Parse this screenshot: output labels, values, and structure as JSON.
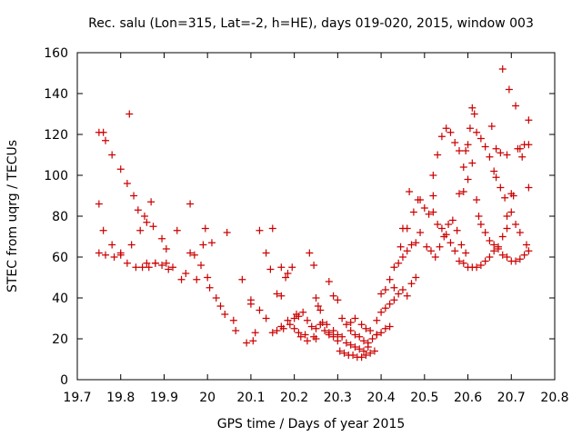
{
  "chart_data": {
    "type": "scatter",
    "title": "Rec. salu (Lon=315, Lat=-2, h=HE), days 019-020, 2015, window 003",
    "xlabel": "GPS time / Days of year 2015",
    "ylabel": "STEC from uqrg / TECUs",
    "xlim": [
      19.7,
      20.8
    ],
    "ylim": [
      0,
      160
    ],
    "xticks": [
      "19.7",
      "19.8",
      "19.9",
      "20",
      "20.1",
      "20.2",
      "20.3",
      "20.4",
      "20.5",
      "20.6",
      "20.7",
      "20.8"
    ],
    "yticks": [
      "0",
      "20",
      "40",
      "60",
      "80",
      "100",
      "120",
      "140",
      "160"
    ],
    "grid": false,
    "marker": "+",
    "color": "#cc0000",
    "points": [
      [
        19.75,
        121
      ],
      [
        19.76,
        121
      ],
      [
        19.765,
        117
      ],
      [
        19.78,
        110
      ],
      [
        19.8,
        103
      ],
      [
        19.815,
        96
      ],
      [
        19.83,
        90
      ],
      [
        19.84,
        83
      ],
      [
        19.855,
        80
      ],
      [
        19.86,
        77
      ],
      [
        19.875,
        75
      ],
      [
        19.87,
        87
      ],
      [
        19.895,
        69
      ],
      [
        19.905,
        64
      ],
      [
        19.93,
        73
      ],
      [
        19.96,
        86
      ],
      [
        19.995,
        74
      ],
      [
        20.01,
        67
      ],
      [
        19.75,
        86
      ],
      [
        19.76,
        73
      ],
      [
        19.78,
        66
      ],
      [
        19.8,
        62
      ],
      [
        19.825,
        66
      ],
      [
        19.845,
        73
      ],
      [
        19.86,
        57
      ],
      [
        19.88,
        57
      ],
      [
        19.905,
        57
      ],
      [
        19.92,
        55
      ],
      [
        19.95,
        52
      ],
      [
        19.975,
        49
      ],
      [
        20.005,
        45
      ],
      [
        20.03,
        36
      ],
      [
        20.06,
        29
      ],
      [
        19.75,
        62
      ],
      [
        19.765,
        61
      ],
      [
        19.785,
        60
      ],
      [
        19.8,
        61
      ],
      [
        19.815,
        57
      ],
      [
        19.835,
        55
      ],
      [
        19.85,
        55
      ],
      [
        19.865,
        55
      ],
      [
        19.88,
        57
      ],
      [
        19.895,
        56
      ],
      [
        19.91,
        54
      ],
      [
        19.94,
        49
      ],
      [
        19.96,
        62
      ],
      [
        19.985,
        56
      ],
      [
        20.0,
        50
      ],
      [
        19.82,
        130
      ],
      [
        19.97,
        61
      ],
      [
        19.99,
        66
      ],
      [
        20.02,
        40
      ],
      [
        20.04,
        32
      ],
      [
        20.065,
        24
      ],
      [
        20.09,
        18
      ],
      [
        20.105,
        19
      ],
      [
        20.11,
        23
      ],
      [
        20.045,
        72
      ],
      [
        20.08,
        49
      ],
      [
        20.1,
        37
      ],
      [
        20.12,
        73
      ],
      [
        20.135,
        62
      ],
      [
        20.145,
        54
      ],
      [
        20.16,
        42
      ],
      [
        20.17,
        41
      ],
      [
        20.175,
        25
      ],
      [
        20.1,
        39
      ],
      [
        20.12,
        34
      ],
      [
        20.135,
        30
      ],
      [
        20.15,
        23
      ],
      [
        20.16,
        24
      ],
      [
        20.17,
        26
      ],
      [
        20.185,
        29
      ],
      [
        20.19,
        27
      ],
      [
        20.2,
        25
      ],
      [
        20.21,
        23
      ],
      [
        20.225,
        22
      ],
      [
        20.15,
        74
      ],
      [
        20.17,
        55
      ],
      [
        20.18,
        50
      ],
      [
        20.185,
        52
      ],
      [
        20.195,
        55
      ],
      [
        20.205,
        32
      ],
      [
        20.215,
        21
      ],
      [
        20.23,
        19
      ],
      [
        20.245,
        21
      ],
      [
        20.25,
        20
      ],
      [
        20.235,
        62
      ],
      [
        20.245,
        56
      ],
      [
        20.25,
        40
      ],
      [
        20.255,
        36
      ],
      [
        20.26,
        34
      ],
      [
        20.265,
        28
      ],
      [
        20.275,
        27
      ],
      [
        20.28,
        23
      ],
      [
        20.29,
        24
      ],
      [
        20.3,
        22
      ],
      [
        20.2,
        30
      ],
      [
        20.21,
        31
      ],
      [
        20.22,
        33
      ],
      [
        20.23,
        29
      ],
      [
        20.24,
        26
      ],
      [
        20.25,
        25
      ],
      [
        20.26,
        27
      ],
      [
        20.27,
        24
      ],
      [
        20.28,
        22
      ],
      [
        20.29,
        21
      ],
      [
        20.3,
        19
      ],
      [
        20.31,
        21
      ],
      [
        20.32,
        18
      ],
      [
        20.33,
        17
      ],
      [
        20.34,
        16
      ],
      [
        20.35,
        15
      ],
      [
        20.36,
        14
      ],
      [
        20.37,
        16
      ],
      [
        20.28,
        48
      ],
      [
        20.29,
        41
      ],
      [
        20.3,
        39
      ],
      [
        20.31,
        30
      ],
      [
        20.32,
        27
      ],
      [
        20.33,
        24
      ],
      [
        20.34,
        22
      ],
      [
        20.35,
        21
      ],
      [
        20.36,
        19
      ],
      [
        20.37,
        18
      ],
      [
        20.38,
        20
      ],
      [
        20.39,
        22
      ],
      [
        20.305,
        14
      ],
      [
        20.315,
        13
      ],
      [
        20.325,
        12
      ],
      [
        20.335,
        12
      ],
      [
        20.345,
        11
      ],
      [
        20.355,
        11
      ],
      [
        20.365,
        12
      ],
      [
        20.375,
        13
      ],
      [
        20.385,
        14
      ],
      [
        20.33,
        28
      ],
      [
        20.34,
        30
      ],
      [
        20.355,
        27
      ],
      [
        20.365,
        25
      ],
      [
        20.375,
        24
      ],
      [
        20.39,
        22
      ],
      [
        20.4,
        23
      ],
      [
        20.41,
        25
      ],
      [
        20.42,
        26
      ],
      [
        20.39,
        29
      ],
      [
        20.4,
        33
      ],
      [
        20.41,
        35
      ],
      [
        20.42,
        37
      ],
      [
        20.43,
        39
      ],
      [
        20.44,
        42
      ],
      [
        20.45,
        44
      ],
      [
        20.46,
        41
      ],
      [
        20.47,
        47
      ],
      [
        20.48,
        50
      ],
      [
        20.4,
        42
      ],
      [
        20.41,
        44
      ],
      [
        20.42,
        49
      ],
      [
        20.43,
        55
      ],
      [
        20.44,
        57
      ],
      [
        20.45,
        60
      ],
      [
        20.46,
        63
      ],
      [
        20.47,
        66
      ],
      [
        20.48,
        67
      ],
      [
        20.49,
        72
      ],
      [
        20.43,
        45
      ],
      [
        20.445,
        65
      ],
      [
        20.45,
        74
      ],
      [
        20.46,
        74
      ],
      [
        20.465,
        92
      ],
      [
        20.475,
        82
      ],
      [
        20.485,
        88
      ],
      [
        20.49,
        88
      ],
      [
        20.5,
        84
      ],
      [
        20.51,
        81
      ],
      [
        20.52,
        90
      ],
      [
        20.52,
        100
      ],
      [
        20.53,
        110
      ],
      [
        20.54,
        119
      ],
      [
        20.55,
        123
      ],
      [
        20.56,
        121
      ],
      [
        20.57,
        116
      ],
      [
        20.58,
        112
      ],
      [
        20.59,
        104
      ],
      [
        20.6,
        98
      ],
      [
        20.52,
        82
      ],
      [
        20.53,
        76
      ],
      [
        20.54,
        74
      ],
      [
        20.55,
        71
      ],
      [
        20.56,
        67
      ],
      [
        20.57,
        63
      ],
      [
        20.58,
        58
      ],
      [
        20.59,
        57
      ],
      [
        20.6,
        55
      ],
      [
        20.61,
        55
      ],
      [
        20.62,
        55
      ],
      [
        20.63,
        56
      ],
      [
        20.64,
        58
      ],
      [
        20.65,
        60
      ],
      [
        20.66,
        63
      ],
      [
        20.67,
        64
      ],
      [
        20.68,
        61
      ],
      [
        20.69,
        60
      ],
      [
        20.7,
        58
      ],
      [
        20.71,
        58
      ],
      [
        20.72,
        59
      ],
      [
        20.73,
        61
      ],
      [
        20.74,
        63
      ],
      [
        20.505,
        65
      ],
      [
        20.515,
        63
      ],
      [
        20.525,
        60
      ],
      [
        20.535,
        65
      ],
      [
        20.545,
        70
      ],
      [
        20.555,
        76
      ],
      [
        20.565,
        78
      ],
      [
        20.575,
        73
      ],
      [
        20.585,
        66
      ],
      [
        20.595,
        62
      ],
      [
        20.58,
        91
      ],
      [
        20.59,
        92
      ],
      [
        20.595,
        112
      ],
      [
        20.605,
        123
      ],
      [
        20.61,
        133
      ],
      [
        20.615,
        130
      ],
      [
        20.62,
        121
      ],
      [
        20.63,
        118
      ],
      [
        20.64,
        114
      ],
      [
        20.65,
        109
      ],
      [
        20.66,
        102
      ],
      [
        20.6,
        115
      ],
      [
        20.61,
        106
      ],
      [
        20.62,
        88
      ],
      [
        20.625,
        80
      ],
      [
        20.63,
        76
      ],
      [
        20.64,
        72
      ],
      [
        20.65,
        68
      ],
      [
        20.66,
        66
      ],
      [
        20.67,
        65
      ],
      [
        20.68,
        70
      ],
      [
        20.69,
        74
      ],
      [
        20.655,
        124
      ],
      [
        20.665,
        113
      ],
      [
        20.675,
        111
      ],
      [
        20.68,
        152
      ],
      [
        20.69,
        110
      ],
      [
        20.695,
        142
      ],
      [
        20.7,
        91
      ],
      [
        20.705,
        90
      ],
      [
        20.71,
        134
      ],
      [
        20.715,
        113
      ],
      [
        20.72,
        113
      ],
      [
        20.725,
        109
      ],
      [
        20.73,
        115
      ],
      [
        20.74,
        127
      ],
      [
        20.74,
        115
      ],
      [
        20.74,
        94
      ],
      [
        20.665,
        99
      ],
      [
        20.675,
        94
      ],
      [
        20.685,
        89
      ],
      [
        20.69,
        80
      ],
      [
        20.7,
        82
      ],
      [
        20.71,
        76
      ],
      [
        20.72,
        72
      ],
      [
        20.735,
        66
      ]
    ]
  }
}
